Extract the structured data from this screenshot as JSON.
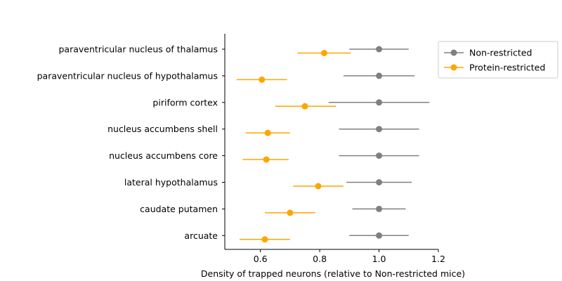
{
  "chart_data": {
    "type": "scatter",
    "title": "",
    "xlabel": "Density of trapped neurons (relative to Non-restricted mice)",
    "ylabel": "",
    "xlim": [
      0.48,
      1.2
    ],
    "xticks": [
      0.6,
      0.8,
      1.0,
      1.2
    ],
    "xtick_labels": [
      "0.6",
      "0.8",
      "1.0",
      "1.2"
    ],
    "categories": [
      "paraventricular nucleus of thalamus",
      "paraventricular nucleus of hypothalamus",
      "piriform cortex",
      "nucleus accumbens shell",
      "nucleus accumbens core",
      "lateral hypothalamus",
      "caudate putamen",
      "arcuate"
    ],
    "grid": false,
    "legend_position": "top-right, outside plot",
    "series": [
      {
        "name": "Non-restricted",
        "color": "#808080",
        "values": [
          1.0,
          1.0,
          1.0,
          1.0,
          1.0,
          1.0,
          1.0,
          1.0
        ],
        "err_low": [
          0.9,
          0.88,
          0.83,
          0.865,
          0.865,
          0.89,
          0.91,
          0.9
        ],
        "err_high": [
          1.1,
          1.12,
          1.17,
          1.135,
          1.135,
          1.11,
          1.09,
          1.1
        ]
      },
      {
        "name": "Protein-restricted",
        "color": "#ffa500",
        "values": [
          0.815,
          0.605,
          0.75,
          0.625,
          0.62,
          0.795,
          0.7,
          0.615
        ],
        "err_low": [
          0.725,
          0.52,
          0.65,
          0.55,
          0.54,
          0.71,
          0.615,
          0.53
        ],
        "err_high": [
          0.905,
          0.69,
          0.855,
          0.7,
          0.695,
          0.88,
          0.785,
          0.7
        ]
      }
    ]
  }
}
